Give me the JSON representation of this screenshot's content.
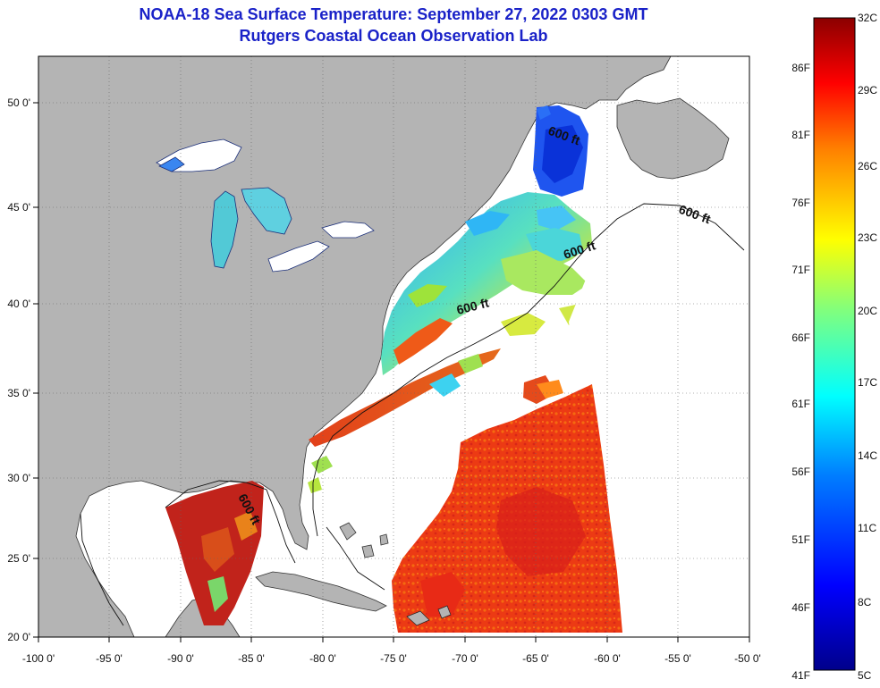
{
  "title_line1": "NOAA-18 Sea Surface Temperature:  September 27, 2022 0303 GMT",
  "title_line2": "Rutgers Coastal Ocean Observation Lab",
  "x_ticks": [
    "-100 0'",
    "-95 0'",
    "-90 0'",
    "-85 0'",
    "-80 0'",
    "-75 0'",
    "-70 0'",
    "-65 0'",
    "-60 0'",
    "-55 0'",
    "-50 0'"
  ],
  "y_ticks": [
    "50 0'",
    "45 0'",
    "40 0'",
    "35 0'",
    "30 0'",
    "25 0'",
    "20 0'"
  ],
  "contour_label": "600 ft",
  "colorbar": {
    "celsius": [
      "32C",
      "29C",
      "26C",
      "23C",
      "20C",
      "17C",
      "14C",
      "11C",
      "8C",
      "5C"
    ],
    "fahrenheit": [
      "86F",
      "81F",
      "76F",
      "71F",
      "66F",
      "61F",
      "56F",
      "51F",
      "46F",
      "41F"
    ],
    "colors": [
      "#00008b",
      "#0000ff",
      "#007fff",
      "#00ffff",
      "#7fff7f",
      "#ffff00",
      "#ff7f00",
      "#ff0000",
      "#8b0000"
    ]
  },
  "colors": {
    "land": "#b4b4b4",
    "cloud": "#ffffff",
    "title": "#1a22c8"
  }
}
